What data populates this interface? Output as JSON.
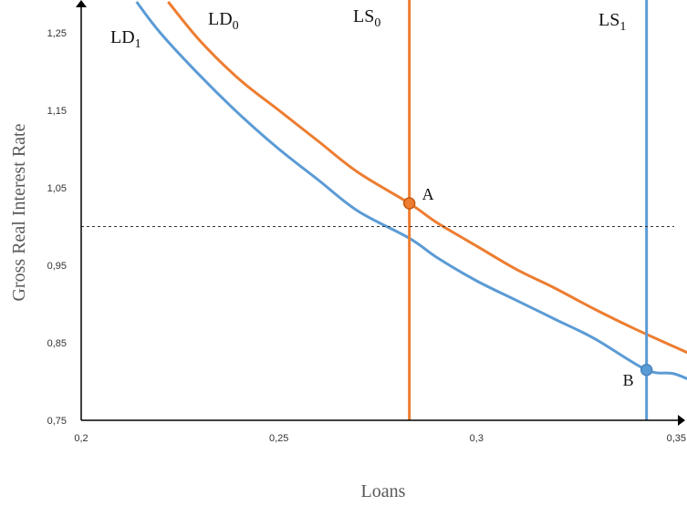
{
  "chart_data": {
    "type": "line",
    "xlabel": "Loans",
    "ylabel": "Gross Real Interest Rate",
    "xlim": [
      0.2,
      0.35
    ],
    "ylim": [
      0.75,
      1.29
    ],
    "x_ticks": [
      "0,2",
      "0,25",
      "0,3",
      "0,35"
    ],
    "x_tick_values": [
      0.2,
      0.25,
      0.3,
      0.35
    ],
    "y_ticks": [
      "0,75",
      "0,85",
      "0,95",
      "1,05",
      "1,15",
      "1,25"
    ],
    "y_tick_values": [
      0.75,
      0.85,
      0.95,
      1.05,
      1.15,
      1.25
    ],
    "reference_line": {
      "y": 1.0,
      "style": "dashed",
      "color": "#333333"
    },
    "series": [
      {
        "name": "LD0",
        "label_main": "LD",
        "label_sub": "0",
        "kind": "demand",
        "color": "#ED7D31",
        "points": [
          [
            0.222,
            1.29
          ],
          [
            0.23,
            1.24
          ],
          [
            0.24,
            1.19
          ],
          [
            0.25,
            1.15
          ],
          [
            0.26,
            1.11
          ],
          [
            0.27,
            1.07
          ],
          [
            0.283,
            1.03
          ],
          [
            0.29,
            1.005
          ],
          [
            0.3,
            0.975
          ],
          [
            0.31,
            0.945
          ],
          [
            0.32,
            0.92
          ],
          [
            0.33,
            0.893
          ],
          [
            0.34,
            0.868
          ],
          [
            0.35,
            0.845
          ],
          [
            0.357,
            0.829
          ]
        ]
      },
      {
        "name": "LD1",
        "label_main": "LD",
        "label_sub": "1",
        "kind": "demand",
        "color": "#5B9BD5",
        "points": [
          [
            0.214,
            1.29
          ],
          [
            0.22,
            1.25
          ],
          [
            0.23,
            1.195
          ],
          [
            0.24,
            1.145
          ],
          [
            0.25,
            1.1
          ],
          [
            0.26,
            1.06
          ],
          [
            0.27,
            1.02
          ],
          [
            0.283,
            0.985
          ],
          [
            0.29,
            0.96
          ],
          [
            0.3,
            0.93
          ],
          [
            0.31,
            0.905
          ],
          [
            0.32,
            0.88
          ],
          [
            0.33,
            0.855
          ],
          [
            0.343,
            0.815
          ],
          [
            0.35,
            0.81
          ],
          [
            0.357,
            0.795
          ]
        ]
      },
      {
        "name": "LS0",
        "label_main": "LS",
        "label_sub": "0",
        "kind": "supply",
        "color": "#ED7D31",
        "x": 0.283
      },
      {
        "name": "LS1",
        "label_main": "LS",
        "label_sub": "1",
        "kind": "supply",
        "color": "#5B9BD5",
        "x": 0.343
      }
    ],
    "points": [
      {
        "label": "A",
        "x": 0.283,
        "y": 1.03,
        "color": "#ED7D31"
      },
      {
        "label": "B",
        "x": 0.343,
        "y": 0.815,
        "color": "#5B9BD5"
      }
    ],
    "grid": false,
    "legend": "none"
  }
}
